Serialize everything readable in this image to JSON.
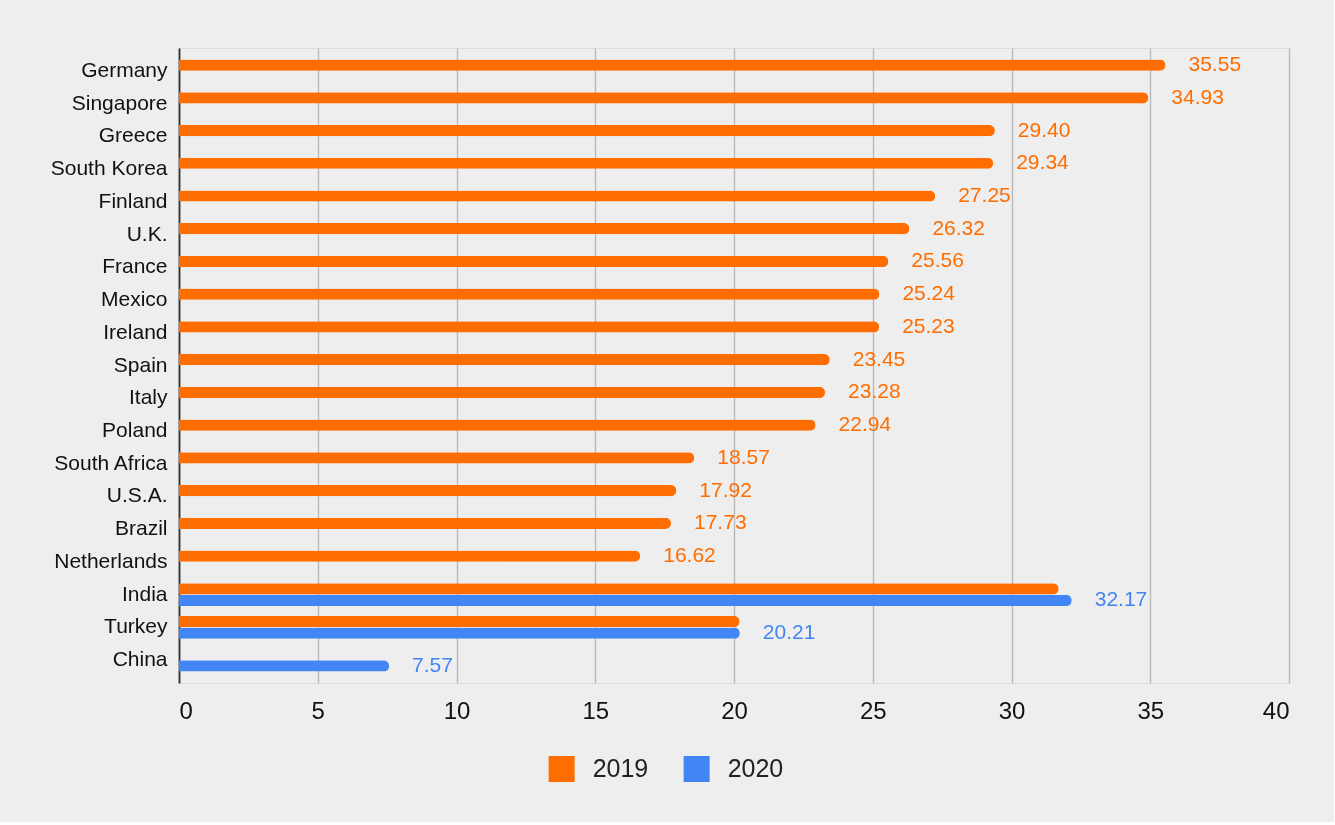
{
  "chart_data": {
    "type": "bar",
    "orientation": "horizontal",
    "categories": [
      "Germany",
      "Singapore",
      "Greece",
      "South Korea",
      "Finland",
      "U.K.",
      "France",
      "Mexico",
      "Ireland",
      "Spain",
      "Italy",
      "Poland",
      "South Africa",
      "U.S.A.",
      "Brazil",
      "Netherlands",
      "India",
      "Turkey",
      "China"
    ],
    "series": [
      {
        "name": "2019",
        "color": "#ff6d01",
        "values": [
          35.55,
          34.93,
          29.4,
          29.34,
          27.25,
          26.32,
          25.56,
          25.24,
          25.23,
          23.45,
          23.28,
          22.94,
          18.57,
          17.92,
          17.73,
          16.62,
          31.7,
          20.2,
          null
        ],
        "value_labels": [
          "35.55",
          "34.93",
          "29.40",
          "29.34",
          "27.25",
          "26.32",
          "25.56",
          "25.24",
          "25.23",
          "23.45",
          "23.28",
          "22.94",
          "18.57",
          "17.92",
          "17.73",
          "16.62",
          null,
          null,
          null
        ]
      },
      {
        "name": "2020",
        "color": "#4285f4",
        "values": [
          null,
          null,
          null,
          null,
          null,
          null,
          null,
          null,
          null,
          null,
          null,
          null,
          null,
          null,
          null,
          null,
          32.17,
          20.21,
          7.57
        ],
        "value_labels": [
          null,
          null,
          null,
          null,
          null,
          null,
          null,
          null,
          null,
          null,
          null,
          null,
          null,
          null,
          null,
          null,
          "32.17",
          "20.21",
          "7.57"
        ]
      }
    ],
    "xlim": [
      0,
      40
    ],
    "xticks": [
      0,
      5,
      10,
      15,
      20,
      25,
      30,
      35,
      40
    ],
    "grid": "x",
    "legend": "bottom"
  }
}
